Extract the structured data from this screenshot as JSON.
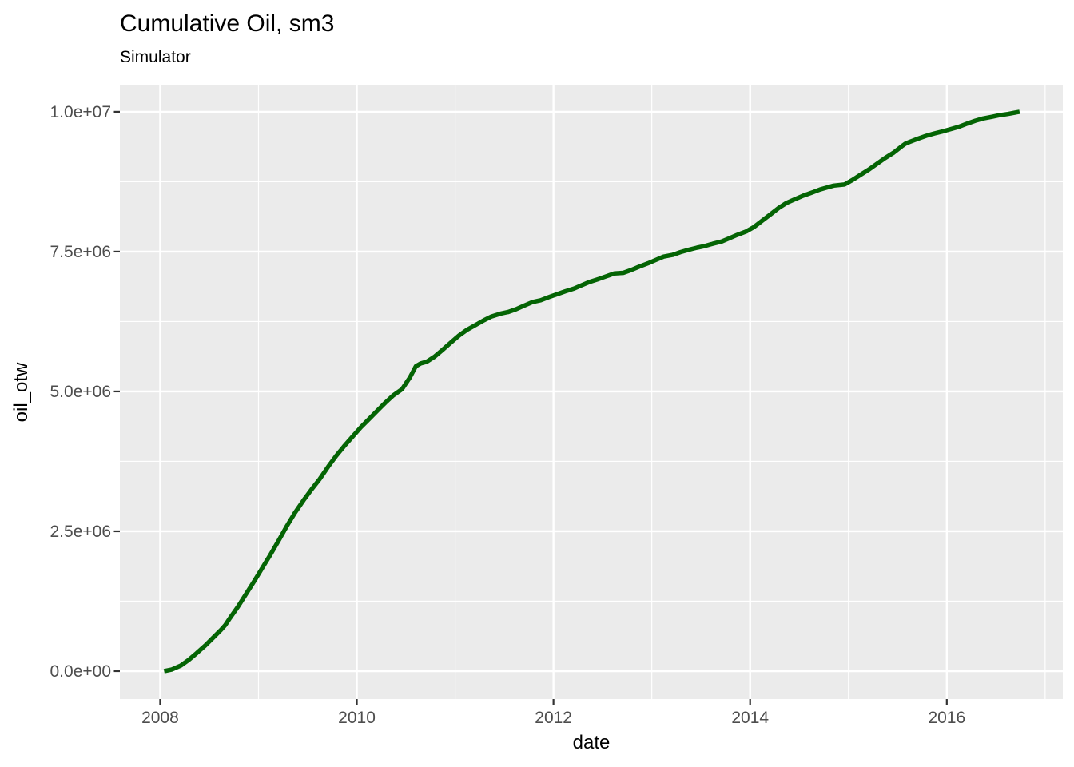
{
  "page": {
    "background": "#FFFFFF"
  },
  "chart": {
    "title": "Cumulative Oil, sm3",
    "subtitle": "Simulator",
    "xlabel": "date",
    "ylabel": "oil_otw"
  },
  "chart_data": {
    "type": "line",
    "title": "Cumulative Oil, sm3",
    "subtitle": "Simulator",
    "xlabel": "date",
    "ylabel": "oil_otw",
    "x_unit": "decimal_year",
    "y_unit": "sm3",
    "xlim": [
      2007.59,
      2017.18
    ],
    "ylim": [
      -500000.0,
      10470000.0
    ],
    "grid": "on",
    "legend": "none",
    "panel_background": "#EBEBEB",
    "grid_color": "#FFFFFF",
    "tick_color": "#333333",
    "tick_label_color": "#4D4D4D",
    "x_ticks": [
      {
        "value": 2008,
        "label": "2008"
      },
      {
        "value": 2010,
        "label": "2010"
      },
      {
        "value": 2012,
        "label": "2012"
      },
      {
        "value": 2014,
        "label": "2014"
      },
      {
        "value": 2016,
        "label": "2016"
      }
    ],
    "x_minor": [
      2009,
      2011,
      2013,
      2015,
      2017
    ],
    "y_ticks": [
      {
        "value": 0.0,
        "label": "0.0e+00"
      },
      {
        "value": 2500000.0,
        "label": "2.5e+06"
      },
      {
        "value": 5000000.0,
        "label": "5.0e+06"
      },
      {
        "value": 7500000.0,
        "label": "7.5e+06"
      },
      {
        "value": 10000000.0,
        "label": "1.0e+07"
      }
    ],
    "y_minor": [
      1250000.0,
      3750000.0,
      6250000.0,
      8750000.0
    ],
    "series": [
      {
        "name": "Simulator",
        "color": "#046404",
        "linewidth": 5.5,
        "x": [
          2008.04,
          2008.12,
          2008.21,
          2008.29,
          2008.37,
          2008.46,
          2008.54,
          2008.62,
          2008.66,
          2008.71,
          2008.79,
          2008.87,
          2008.96,
          2009.04,
          2009.12,
          2009.21,
          2009.29,
          2009.37,
          2009.46,
          2009.54,
          2009.62,
          2009.71,
          2009.79,
          2009.87,
          2009.96,
          2010.04,
          2010.12,
          2010.21,
          2010.29,
          2010.37,
          2010.46,
          2010.54,
          2010.6,
          2010.65,
          2010.71,
          2010.79,
          2010.87,
          2010.96,
          2011.04,
          2011.12,
          2011.21,
          2011.29,
          2011.37,
          2011.46,
          2011.54,
          2011.62,
          2011.71,
          2011.79,
          2011.87,
          2011.96,
          2012.04,
          2012.12,
          2012.21,
          2012.29,
          2012.37,
          2012.46,
          2012.54,
          2012.62,
          2012.71,
          2012.79,
          2012.87,
          2012.96,
          2013.04,
          2013.12,
          2013.21,
          2013.29,
          2013.37,
          2013.46,
          2013.54,
          2013.62,
          2013.71,
          2013.79,
          2013.87,
          2013.96,
          2014.04,
          2014.12,
          2014.21,
          2014.29,
          2014.37,
          2014.46,
          2014.54,
          2014.62,
          2014.71,
          2014.79,
          2014.85,
          2014.96,
          2015.04,
          2015.12,
          2015.21,
          2015.29,
          2015.37,
          2015.46,
          2015.54,
          2015.58,
          2015.62,
          2015.71,
          2015.79,
          2015.87,
          2015.96,
          2016.04,
          2016.12,
          2016.21,
          2016.29,
          2016.37,
          2016.46,
          2016.54,
          2016.62,
          2016.71,
          2016.74
        ],
        "y": [
          0.0,
          30000.0,
          100000.0,
          200000.0,
          320000.0,
          460000.0,
          600000.0,
          740000.0,
          820000.0,
          950000.0,
          1150000.0,
          1370000.0,
          1620000.0,
          1850000.0,
          2080000.0,
          2350000.0,
          2600000.0,
          2830000.0,
          3060000.0,
          3250000.0,
          3430000.0,
          3660000.0,
          3850000.0,
          4020000.0,
          4200000.0,
          4360000.0,
          4500000.0,
          4660000.0,
          4800000.0,
          4930000.0,
          5040000.0,
          5250000.0,
          5450000.0,
          5500000.0,
          5530000.0,
          5620000.0,
          5740000.0,
          5880000.0,
          6000000.0,
          6100000.0,
          6190000.0,
          6270000.0,
          6340000.0,
          6390000.0,
          6420000.0,
          6470000.0,
          6540000.0,
          6600000.0,
          6630000.0,
          6690000.0,
          6740000.0,
          6790000.0,
          6840000.0,
          6900000.0,
          6960000.0,
          7010000.0,
          7060000.0,
          7110000.0,
          7120000.0,
          7170000.0,
          7230000.0,
          7290000.0,
          7350000.0,
          7410000.0,
          7440000.0,
          7490000.0,
          7530000.0,
          7570000.0,
          7600000.0,
          7640000.0,
          7680000.0,
          7740000.0,
          7800000.0,
          7860000.0,
          7940000.0,
          8050000.0,
          8170000.0,
          8280000.0,
          8370000.0,
          8440000.0,
          8500000.0,
          8550000.0,
          8610000.0,
          8650000.0,
          8680000.0,
          8700000.0,
          8780000.0,
          8870000.0,
          8970000.0,
          9070000.0,
          9170000.0,
          9270000.0,
          9380000.0,
          9430000.0,
          9460000.0,
          9520000.0,
          9570000.0,
          9610000.0,
          9650000.0,
          9690000.0,
          9730000.0,
          9790000.0,
          9840000.0,
          9880000.0,
          9910000.0,
          9940000.0,
          9960000.0,
          9990000.0,
          10000000.0
        ]
      }
    ]
  }
}
